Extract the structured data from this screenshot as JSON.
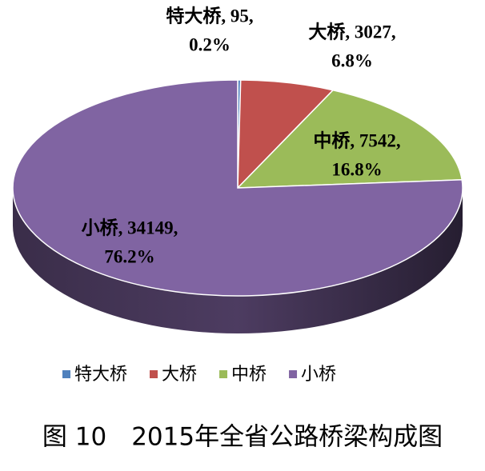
{
  "chart_data": {
    "type": "pie3d",
    "categories": [
      "特大桥",
      "大桥",
      "中桥",
      "小桥"
    ],
    "values": [
      95,
      3027,
      7542,
      34149
    ],
    "value_labels": [
      [
        "特大桥, 95,",
        "0.2%"
      ],
      [
        "大桥, 3027,",
        "6.8%"
      ],
      [
        "中桥, 7542,",
        "16.8%"
      ],
      [
        "小桥, 34149,",
        "76.2%"
      ]
    ],
    "colors": [
      "#4f81bd",
      "#c0504d",
      "#9bbb59",
      "#8064a2"
    ],
    "legend": "bottom"
  },
  "caption": "图 10　2015年全省公路桥梁构成图"
}
